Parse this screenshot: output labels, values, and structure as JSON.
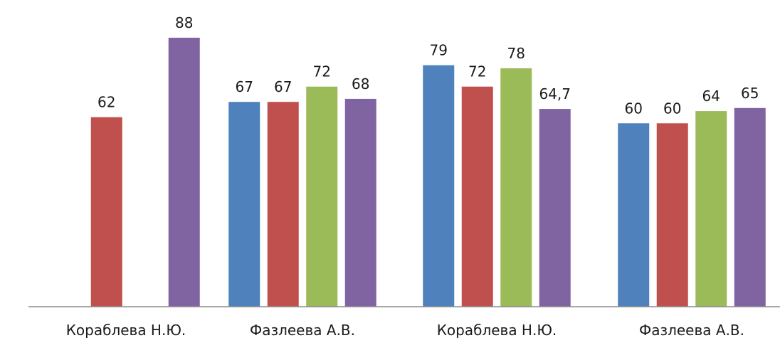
{
  "chart_data": {
    "type": "bar",
    "categories": [
      "Кораблева Н.Ю.",
      "Фазлеева А.В.",
      "Кораблева Н.Ю.",
      "Фазлеева А.В."
    ],
    "series": [
      {
        "color": "#4f81bd",
        "values": [
          null,
          67,
          79,
          60
        ],
        "labels": [
          "",
          "67",
          "79",
          "60"
        ]
      },
      {
        "color": "#c0504d",
        "values": [
          62,
          67,
          72,
          60
        ],
        "labels": [
          "62",
          "67",
          "72",
          "60"
        ]
      },
      {
        "color": "#9bbb59",
        "values": [
          null,
          72,
          78,
          64
        ],
        "labels": [
          "",
          "72",
          "78",
          "64"
        ]
      },
      {
        "color": "#8064a2",
        "values": [
          88,
          68,
          64.7,
          65
        ],
        "labels": [
          "88",
          "68",
          "64,7",
          "65"
        ]
      }
    ],
    "ylim": [
      0,
      100
    ],
    "grid": false,
    "legend": false
  }
}
